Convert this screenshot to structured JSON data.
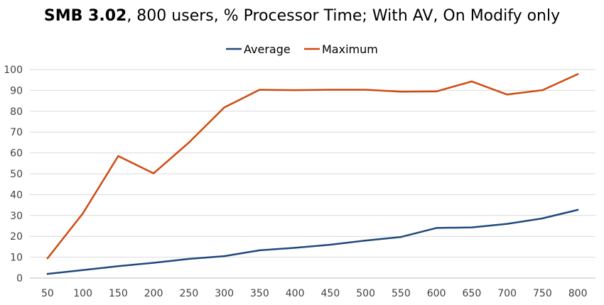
{
  "chart_data": {
    "type": "line",
    "title_bold": "SMB 3.02",
    "title_rest": ", 800 users, % Processor Time; With AV, On Modify only",
    "xlabel": "",
    "ylabel": "",
    "x": [
      50,
      100,
      150,
      200,
      250,
      300,
      350,
      400,
      450,
      500,
      550,
      600,
      650,
      700,
      750,
      800
    ],
    "ylim": [
      0,
      100
    ],
    "yticks": [
      0,
      10,
      20,
      30,
      40,
      50,
      60,
      70,
      80,
      90,
      100
    ],
    "grid": true,
    "legend_position": "top-center",
    "series": [
      {
        "name": "Average",
        "color": "#1f497d",
        "values": [
          2,
          3.8,
          5.7,
          7.3,
          9.2,
          10.5,
          13.3,
          14.5,
          16,
          18,
          19.7,
          24,
          24.3,
          26,
          28.6,
          32.7
        ]
      },
      {
        "name": "Maximum",
        "color": "#d04a10",
        "values": [
          9.5,
          31,
          58.5,
          50.2,
          65,
          81.8,
          90.3,
          90.1,
          90.3,
          90.3,
          89.4,
          89.5,
          94.3,
          88,
          90.1,
          97.8
        ]
      }
    ]
  }
}
